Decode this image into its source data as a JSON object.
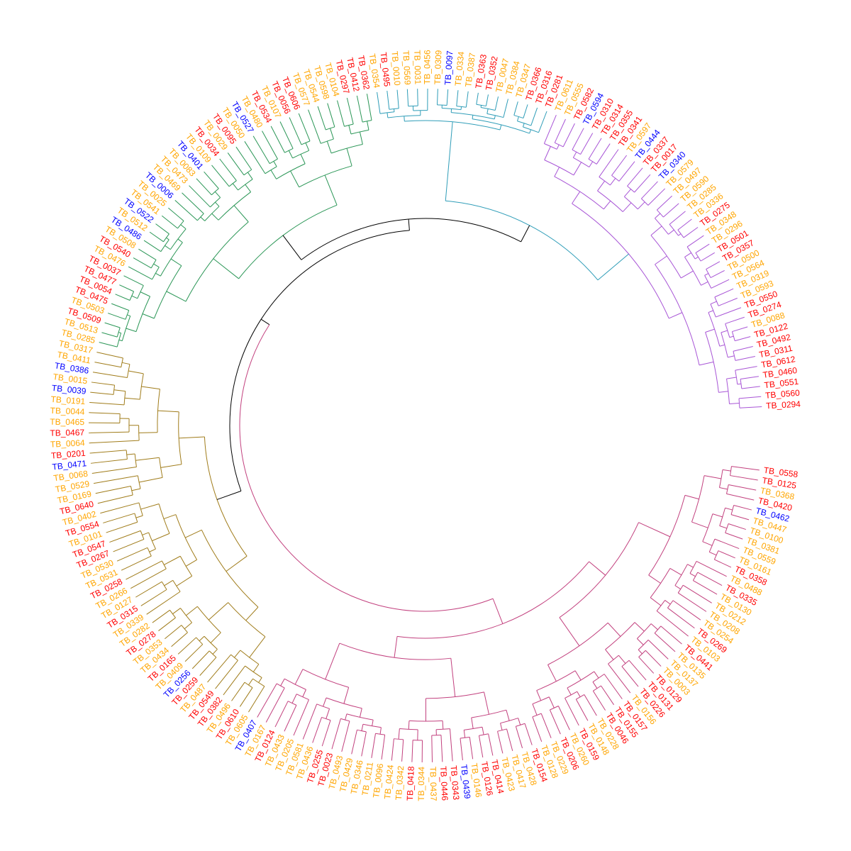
{
  "colors": {
    "label_classes": {
      "r": "#ff0000",
      "o": "#ffa500",
      "b": "#0000ff"
    },
    "clades": {
      "root": "#000000",
      "purple": "#a855d6",
      "pink": "#c2407e",
      "olive": "#a07c1a",
      "green": "#2a9656",
      "teal": "#2f9db8"
    }
  },
  "tree": {
    "type": "circular-dendrogram",
    "clades": [
      {
        "name": "purple",
        "tips": [
          [
            "TB_0611",
            "o"
          ],
          [
            "TB_0555",
            "o"
          ],
          [
            "TB_0582",
            "r"
          ],
          [
            "TB_0594",
            "b"
          ],
          [
            "TB_0310",
            "r"
          ],
          [
            "TB_0314",
            "r"
          ],
          [
            "TB_0355",
            "r"
          ],
          [
            "TB_0341",
            "r"
          ],
          [
            "TB_0597",
            "o"
          ],
          [
            "TB_0444",
            "b"
          ],
          [
            "TB_0337",
            "r"
          ],
          [
            "TB_0017",
            "r"
          ],
          [
            "TB_0340",
            "b"
          ],
          [
            "TB_0579",
            "o"
          ],
          [
            "TB_0497",
            "o"
          ],
          [
            "TB_0590",
            "o"
          ],
          [
            "TB_0285",
            "o"
          ],
          [
            "TB_0336",
            "o"
          ],
          [
            "TB_0275",
            "r"
          ],
          [
            "TB_0348",
            "o"
          ],
          [
            "TB_0296",
            "o"
          ],
          [
            "TB_0501",
            "r"
          ],
          [
            "TB_0357",
            "r"
          ],
          [
            "TB_0500",
            "o"
          ],
          [
            "TB_0564",
            "o"
          ],
          [
            "TB_0319",
            "o"
          ],
          [
            "TB_0593",
            "o"
          ],
          [
            "TB_0550",
            "r"
          ],
          [
            "TB_0274",
            "r"
          ],
          [
            "TB_0088",
            "o"
          ],
          [
            "TB_0122",
            "r"
          ],
          [
            "TB_0492",
            "r"
          ],
          [
            "TB_0311",
            "r"
          ],
          [
            "TB_0612",
            "r"
          ],
          [
            "TB_0460",
            "r"
          ],
          [
            "TB_0551",
            "r"
          ],
          [
            "TB_0560",
            "r"
          ],
          [
            "TB_0294",
            "r"
          ]
        ]
      },
      {
        "name": "teal",
        "tips": [
          [
            "TB_0354",
            "o"
          ],
          [
            "TB_0495",
            "r"
          ],
          [
            "TB_0010",
            "o"
          ],
          [
            "TB_0569",
            "o"
          ],
          [
            "TB_0031",
            "o"
          ],
          [
            "TB_0456",
            "o"
          ],
          [
            "TB_0309",
            "o"
          ],
          [
            "TB_0097",
            "b"
          ],
          [
            "TB_0334",
            "o"
          ],
          [
            "TB_0387",
            "o"
          ],
          [
            "TB_0363",
            "r"
          ],
          [
            "TB_0352",
            "r"
          ],
          [
            "TB_0047",
            "o"
          ],
          [
            "TB_0384",
            "o"
          ],
          [
            "TB_0347",
            "o"
          ],
          [
            "TB_0366",
            "r"
          ],
          [
            "TB_0316",
            "r"
          ],
          [
            "TB_0281",
            "r"
          ]
        ]
      },
      {
        "name": "green",
        "tips": [
          [
            "TB_0285",
            "o"
          ],
          [
            "TB_0513",
            "o"
          ],
          [
            "TB_0509",
            "r"
          ],
          [
            "TB_0503",
            "o"
          ],
          [
            "TB_0475",
            "r"
          ],
          [
            "TB_0054",
            "r"
          ],
          [
            "TB_0477",
            "r"
          ],
          [
            "TB_0037",
            "r"
          ],
          [
            "TB_0476",
            "o"
          ],
          [
            "TB_0540",
            "r"
          ],
          [
            "TB_0508",
            "o"
          ],
          [
            "TB_0486",
            "b"
          ],
          [
            "TB_0512",
            "o"
          ],
          [
            "TB_0522",
            "b"
          ],
          [
            "TB_0541",
            "o"
          ],
          [
            "TB_0025",
            "o"
          ],
          [
            "TB_0006",
            "b"
          ],
          [
            "TB_0469",
            "o"
          ],
          [
            "TB_0473",
            "o"
          ],
          [
            "TB_0083",
            "o"
          ],
          [
            "TB_0401",
            "b"
          ],
          [
            "TB_0109",
            "o"
          ],
          [
            "TB_0034",
            "r"
          ],
          [
            "TB_0029",
            "o"
          ],
          [
            "TB_0095",
            "r"
          ],
          [
            "TB_0050",
            "o"
          ],
          [
            "TB_0527",
            "b"
          ],
          [
            "TB_0480",
            "o"
          ],
          [
            "TB_0534",
            "r"
          ],
          [
            "TB_0107",
            "o"
          ],
          [
            "TB_0056",
            "r"
          ],
          [
            "TB_0606",
            "r"
          ],
          [
            "TB_0577",
            "o"
          ],
          [
            "TB_0544",
            "o"
          ],
          [
            "TB_0598",
            "o"
          ],
          [
            "TB_0104",
            "o"
          ],
          [
            "TB_0297",
            "r"
          ],
          [
            "TB_0412",
            "r"
          ],
          [
            "TB_0362",
            "r"
          ]
        ]
      },
      {
        "name": "olive",
        "tips": [
          [
            "TB_0605",
            "o"
          ],
          [
            "TB_0610",
            "r"
          ],
          [
            "TB_0496",
            "o"
          ],
          [
            "TB_0382",
            "r"
          ],
          [
            "TB_0549",
            "r"
          ],
          [
            "TB_0487",
            "o"
          ],
          [
            "TB_0259",
            "r"
          ],
          [
            "TB_0256",
            "b"
          ],
          [
            "TB_0409",
            "o"
          ],
          [
            "TB_0165",
            "r"
          ],
          [
            "TB_0434",
            "o"
          ],
          [
            "TB_0353",
            "o"
          ],
          [
            "TB_0278",
            "r"
          ],
          [
            "TB_0282",
            "o"
          ],
          [
            "TB_0339",
            "o"
          ],
          [
            "TB_0315",
            "r"
          ],
          [
            "TB_0127",
            "o"
          ],
          [
            "TB_0266",
            "o"
          ],
          [
            "TB_0258",
            "r"
          ],
          [
            "TB_0531",
            "o"
          ],
          [
            "TB_0530",
            "o"
          ],
          [
            "TB_0267",
            "r"
          ],
          [
            "TB_0547",
            "r"
          ],
          [
            "TB_0101",
            "o"
          ],
          [
            "TB_0554",
            "r"
          ],
          [
            "TB_0402",
            "o"
          ],
          [
            "TB_0640",
            "r"
          ],
          [
            "TB_0169",
            "o"
          ],
          [
            "TB_0529",
            "o"
          ],
          [
            "TB_0068",
            "o"
          ],
          [
            "TB_0471",
            "b"
          ],
          [
            "TB_0201",
            "r"
          ],
          [
            "TB_0064",
            "o"
          ],
          [
            "TB_0467",
            "r"
          ],
          [
            "TB_0465",
            "o"
          ],
          [
            "TB_0044",
            "o"
          ],
          [
            "TB_0191",
            "o"
          ],
          [
            "TB_0039",
            "b"
          ],
          [
            "TB_0015",
            "o"
          ],
          [
            "TB_0386",
            "b"
          ],
          [
            "TB_0411",
            "o"
          ],
          [
            "TB_0317",
            "o"
          ]
        ]
      },
      {
        "name": "pink",
        "tips": [
          [
            "TB_0407",
            "b"
          ],
          [
            "TB_0167",
            "o"
          ],
          [
            "TB_0124",
            "r"
          ],
          [
            "TB_0433",
            "o"
          ],
          [
            "TB_0205",
            "o"
          ],
          [
            "TB_0581",
            "o"
          ],
          [
            "TB_0436",
            "o"
          ],
          [
            "TB_0255",
            "r"
          ],
          [
            "TB_0023",
            "r"
          ],
          [
            "TB_0493",
            "o"
          ],
          [
            "TB_0429",
            "o"
          ],
          [
            "TB_0346",
            "o"
          ],
          [
            "TB_0211",
            "o"
          ],
          [
            "TB_0096",
            "o"
          ],
          [
            "TB_0424",
            "o"
          ],
          [
            "TB_0342",
            "o"
          ],
          [
            "TB_0418",
            "r"
          ],
          [
            "TB_0344",
            "o"
          ],
          [
            "TB_0437",
            "o"
          ],
          [
            "TB_0446",
            "r"
          ],
          [
            "TB_0343",
            "r"
          ],
          [
            "TB_0439",
            "b"
          ],
          [
            "TB_0146",
            "o"
          ],
          [
            "TB_0126",
            "r"
          ],
          [
            "TB_0414",
            "r"
          ],
          [
            "TB_0423",
            "o"
          ],
          [
            "TB_0417",
            "o"
          ],
          [
            "TB_0428",
            "o"
          ],
          [
            "TB_0154",
            "r"
          ],
          [
            "TB_0128",
            "o"
          ],
          [
            "TB_0229",
            "o"
          ],
          [
            "TB_0206",
            "r"
          ],
          [
            "TB_0260",
            "o"
          ],
          [
            "TB_0159",
            "r"
          ],
          [
            "TB_0148",
            "o"
          ],
          [
            "TB_0228",
            "o"
          ],
          [
            "TB_0046",
            "r"
          ],
          [
            "TB_0155",
            "r"
          ],
          [
            "TB_0157",
            "r"
          ],
          [
            "TB_0156",
            "o"
          ],
          [
            "TB_0226",
            "r"
          ],
          [
            "TB_0131",
            "r"
          ],
          [
            "TB_0129",
            "r"
          ],
          [
            "TB_0003",
            "o"
          ],
          [
            "TB_0137",
            "o"
          ],
          [
            "TB_0135",
            "o"
          ],
          [
            "TB_0441",
            "r"
          ],
          [
            "TB_0103",
            "o"
          ],
          [
            "TB_0269",
            "r"
          ],
          [
            "TB_0254",
            "o"
          ],
          [
            "TB_0208",
            "o"
          ],
          [
            "TB_0212",
            "o"
          ],
          [
            "TB_0130",
            "o"
          ],
          [
            "TB_0335",
            "r"
          ],
          [
            "TB_0488",
            "o"
          ],
          [
            "TB_0358",
            "r"
          ],
          [
            "TB_0161",
            "o"
          ],
          [
            "TB_0559",
            "o"
          ],
          [
            "TB_0381",
            "o"
          ],
          [
            "TB_0100",
            "o"
          ],
          [
            "TB_0447",
            "o"
          ],
          [
            "TB_0462",
            "b"
          ],
          [
            "TB_0420",
            "r"
          ],
          [
            "TB_0368",
            "o"
          ],
          [
            "TB_0125",
            "r"
          ],
          [
            "TB_0558",
            "r"
          ]
        ]
      }
    ]
  }
}
